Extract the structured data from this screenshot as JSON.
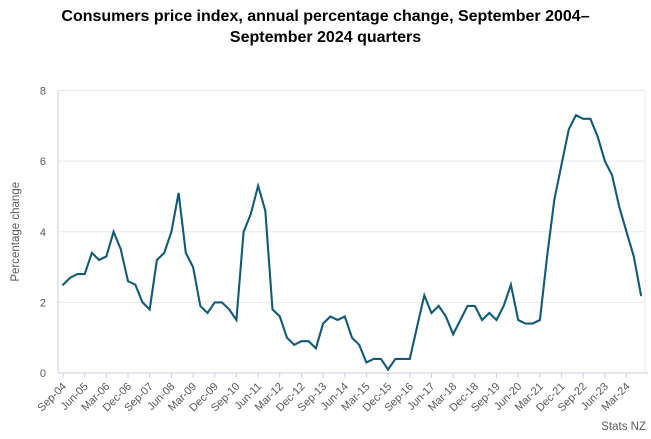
{
  "chart_data": {
    "type": "line",
    "title": "Consumers price index, annual percentage change, September 2004–September 2024 quarters",
    "ylabel": "Percentage change",
    "xlabel": "",
    "source": "Stats NZ",
    "ylim": [
      0,
      8
    ],
    "yticks": [
      0,
      2,
      4,
      6,
      8
    ],
    "grid": true,
    "legend": "none",
    "xtick_every": 3,
    "colors": {
      "line": "#145a77",
      "grid": "#e8e8e8",
      "axis": "#c8cee6",
      "text": "#595959"
    },
    "x": [
      "Sep-04",
      "Dec-04",
      "Mar-05",
      "Jun-05",
      "Sep-05",
      "Dec-05",
      "Mar-06",
      "Jun-06",
      "Sep-06",
      "Dec-06",
      "Mar-07",
      "Jun-07",
      "Sep-07",
      "Dec-07",
      "Mar-08",
      "Jun-08",
      "Sep-08",
      "Dec-08",
      "Mar-09",
      "Jun-09",
      "Sep-09",
      "Dec-09",
      "Mar-10",
      "Jun-10",
      "Sep-10",
      "Dec-10",
      "Mar-11",
      "Jun-11",
      "Sep-11",
      "Dec-11",
      "Mar-12",
      "Jun-12",
      "Sep-12",
      "Dec-12",
      "Mar-13",
      "Jun-13",
      "Sep-13",
      "Dec-13",
      "Mar-14",
      "Jun-14",
      "Sep-14",
      "Dec-14",
      "Mar-15",
      "Jun-15",
      "Sep-15",
      "Dec-15",
      "Mar-16",
      "Jun-16",
      "Sep-16",
      "Dec-16",
      "Mar-17",
      "Jun-17",
      "Sep-17",
      "Dec-17",
      "Mar-18",
      "Jun-18",
      "Sep-18",
      "Dec-18",
      "Mar-19",
      "Jun-19",
      "Sep-19",
      "Dec-19",
      "Mar-20",
      "Jun-20",
      "Sep-20",
      "Dec-20",
      "Mar-21",
      "Jun-21",
      "Sep-21",
      "Dec-21",
      "Mar-22",
      "Jun-22",
      "Sep-22",
      "Dec-22",
      "Mar-23",
      "Jun-23",
      "Sep-23",
      "Dec-23",
      "Mar-24",
      "Jun-24",
      "Sep-24"
    ],
    "values": [
      2.5,
      2.7,
      2.8,
      2.8,
      3.4,
      3.2,
      3.3,
      4.0,
      3.5,
      2.6,
      2.5,
      2.0,
      1.8,
      3.2,
      3.4,
      4.0,
      5.1,
      3.4,
      3.0,
      1.9,
      1.7,
      2.0,
      2.0,
      1.8,
      1.5,
      4.0,
      4.5,
      5.3,
      4.6,
      1.8,
      1.6,
      1.0,
      0.8,
      0.9,
      0.9,
      0.7,
      1.4,
      1.6,
      1.5,
      1.6,
      1.0,
      0.8,
      0.3,
      0.4,
      0.4,
      0.1,
      0.4,
      0.4,
      0.4,
      1.3,
      2.2,
      1.7,
      1.9,
      1.6,
      1.1,
      1.5,
      1.9,
      1.9,
      1.5,
      1.7,
      1.5,
      1.9,
      2.5,
      1.5,
      1.4,
      1.4,
      1.5,
      3.3,
      4.9,
      5.9,
      6.9,
      7.3,
      7.2,
      7.2,
      6.7,
      6.0,
      5.6,
      4.7,
      4.0,
      3.3,
      2.2
    ]
  }
}
